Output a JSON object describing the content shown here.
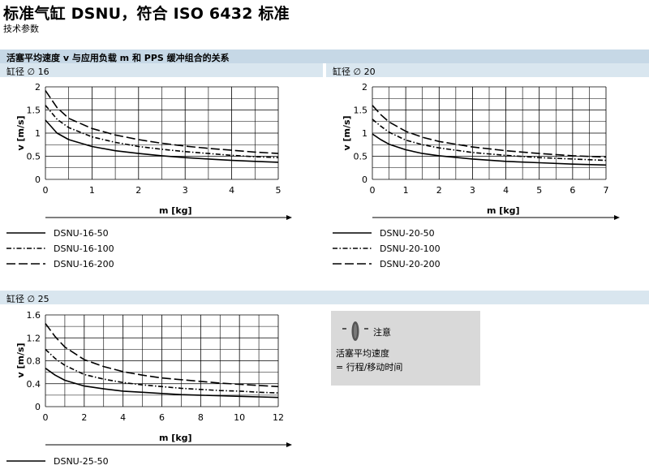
{
  "header": {
    "title": "标准气缸 DSNU，符合 ISO 6432 标准",
    "subtitle": "技术参数"
  },
  "section": {
    "title": "活塞平均速度 v 与应用负载 m 和 PPS 缓冲组合的关系"
  },
  "chart_data": [
    {
      "type": "line",
      "bore_label": "缸径 ∅ 16",
      "xlabel": "m [kg]",
      "ylabel": "v [m/s]",
      "xlim": [
        0,
        5
      ],
      "ylim": [
        0,
        2
      ],
      "xticks": [
        "0",
        "1",
        "2",
        "3",
        "4",
        "5"
      ],
      "yticks": [
        "0",
        "0.5",
        "1",
        "1.5",
        "2"
      ],
      "grid": true,
      "legend_position": "below",
      "x": [
        0,
        0.25,
        0.5,
        1,
        1.5,
        2,
        2.5,
        3,
        3.5,
        4,
        4.5,
        5
      ],
      "series": [
        {
          "name": "DSNU-16-50",
          "style": "solid",
          "values": [
            1.28,
            1.0,
            0.86,
            0.71,
            0.62,
            0.56,
            0.51,
            0.47,
            0.44,
            0.41,
            0.39,
            0.37
          ]
        },
        {
          "name": "DSNU-16-100",
          "style": "dashdot",
          "values": [
            1.6,
            1.3,
            1.12,
            0.92,
            0.8,
            0.71,
            0.65,
            0.6,
            0.56,
            0.52,
            0.49,
            0.47
          ]
        },
        {
          "name": "DSNU-16-200",
          "style": "longdash",
          "values": [
            1.92,
            1.55,
            1.32,
            1.1,
            0.96,
            0.86,
            0.78,
            0.72,
            0.67,
            0.63,
            0.59,
            0.56
          ]
        }
      ]
    },
    {
      "type": "line",
      "bore_label": "缸径 ∅ 20",
      "xlabel": "m [kg]",
      "ylabel": "v [m/s]",
      "xlim": [
        0,
        7
      ],
      "ylim": [
        0,
        2
      ],
      "xticks": [
        "0",
        "1",
        "2",
        "3",
        "4",
        "5",
        "6",
        "7"
      ],
      "yticks": [
        "0",
        "0.5",
        "1",
        "1.5",
        "2"
      ],
      "grid": true,
      "legend_position": "below",
      "x": [
        0,
        0.25,
        0.5,
        1,
        1.5,
        2,
        3,
        4,
        5,
        6,
        7
      ],
      "series": [
        {
          "name": "DSNU-20-50",
          "style": "solid",
          "values": [
            0.98,
            0.86,
            0.76,
            0.64,
            0.56,
            0.51,
            0.44,
            0.39,
            0.36,
            0.33,
            0.31
          ]
        },
        {
          "name": "DSNU-20-100",
          "style": "dashdot",
          "values": [
            1.3,
            1.15,
            1.02,
            0.85,
            0.75,
            0.68,
            0.58,
            0.52,
            0.47,
            0.44,
            0.41
          ]
        },
        {
          "name": "DSNU-20-200",
          "style": "longdash",
          "values": [
            1.6,
            1.4,
            1.24,
            1.04,
            0.91,
            0.82,
            0.7,
            0.62,
            0.56,
            0.51,
            0.48
          ]
        }
      ]
    },
    {
      "type": "line",
      "bore_label": "缸径 ∅ 25",
      "xlabel": "m [kg]",
      "ylabel": "v [m/s]",
      "xlim": [
        0,
        12
      ],
      "ylim": [
        0,
        1.6
      ],
      "xticks": [
        "0",
        "2",
        "4",
        "6",
        "8",
        "10",
        "12"
      ],
      "yticks": [
        "0",
        "0.4",
        "0.8",
        "1.2",
        "1.6"
      ],
      "grid": true,
      "legend_position": "below",
      "x": [
        0,
        0.5,
        1,
        2,
        3,
        4,
        5,
        6,
        7,
        8,
        9,
        10,
        11,
        12
      ],
      "series": [
        {
          "name": "DSNU-25-50",
          "style": "solid",
          "values": [
            0.67,
            0.55,
            0.46,
            0.36,
            0.31,
            0.27,
            0.25,
            0.23,
            0.21,
            0.2,
            0.19,
            0.18,
            0.17,
            0.16
          ]
        },
        {
          "name": "",
          "style": "dashdot",
          "values": [
            1.0,
            0.84,
            0.72,
            0.56,
            0.48,
            0.42,
            0.38,
            0.35,
            0.32,
            0.3,
            0.28,
            0.27,
            0.25,
            0.24
          ]
        },
        {
          "name": "",
          "style": "longdash",
          "values": [
            1.45,
            1.22,
            1.04,
            0.82,
            0.7,
            0.61,
            0.55,
            0.5,
            0.47,
            0.44,
            0.41,
            0.39,
            0.37,
            0.35
          ]
        }
      ]
    }
  ],
  "note": {
    "heading": "注意",
    "line1": "活塞平均速度",
    "line2": "= 行程/移动时间",
    "icon": "info-eye-icon"
  }
}
